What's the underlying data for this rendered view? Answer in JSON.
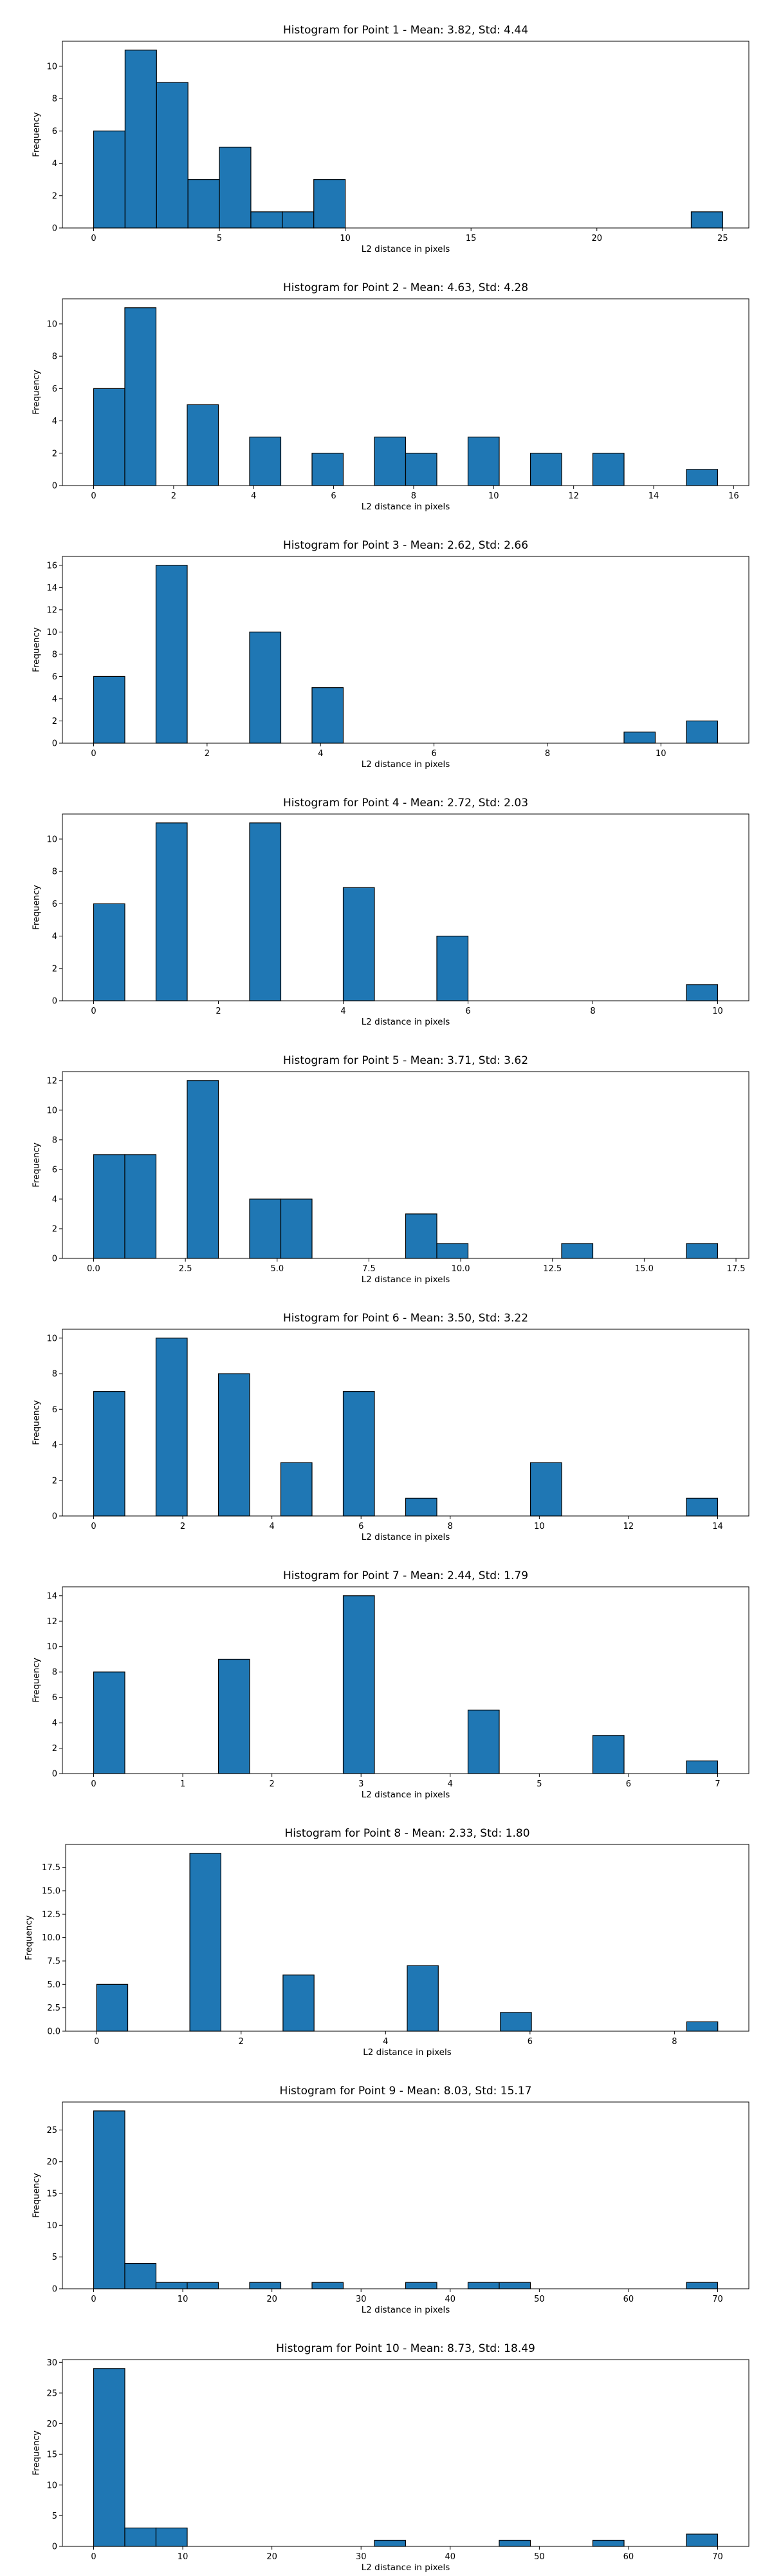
{
  "chart_data": [
    {
      "type": "bar",
      "title": "Histogram for Point 1 - Mean: 3.82, Std: 4.44",
      "xlabel": "L2 distance in pixels",
      "ylabel": "Frequency",
      "xlim": [
        -1.24,
        26.04
      ],
      "ylim": [
        0,
        11.55
      ],
      "xticks": [
        0,
        5,
        10,
        15,
        20,
        25
      ],
      "xtick_labels": [
        "0",
        "5",
        "10",
        "15",
        "20",
        "25"
      ],
      "yticks": [
        0,
        2,
        4,
        6,
        8,
        10
      ],
      "ytick_labels": [
        "0",
        "2",
        "4",
        "6",
        "8",
        "10"
      ],
      "grid": false,
      "color": "#1f77b4",
      "bins": [
        {
          "x0": 0.0,
          "x1": 1.25,
          "value": 6
        },
        {
          "x0": 1.25,
          "x1": 2.5,
          "value": 11
        },
        {
          "x0": 2.5,
          "x1": 3.75,
          "value": 9
        },
        {
          "x0": 3.75,
          "x1": 5.0,
          "value": 3
        },
        {
          "x0": 5.0,
          "x1": 6.25,
          "value": 5
        },
        {
          "x0": 6.25,
          "x1": 7.5,
          "value": 1
        },
        {
          "x0": 7.5,
          "x1": 8.75,
          "value": 1
        },
        {
          "x0": 8.75,
          "x1": 10.0,
          "value": 3
        },
        {
          "x0": 23.75,
          "x1": 25.0,
          "value": 1
        }
      ]
    },
    {
      "type": "bar",
      "title": "Histogram for Point 2 - Mean: 4.63, Std: 4.28",
      "xlabel": "L2 distance in pixels",
      "ylabel": "Frequency",
      "xlim": [
        -0.78,
        16.38
      ],
      "ylim": [
        0,
        11.55
      ],
      "xticks": [
        0,
        2,
        4,
        6,
        8,
        10,
        12,
        14,
        16
      ],
      "xtick_labels": [
        "0",
        "2",
        "4",
        "6",
        "8",
        "10",
        "12",
        "14",
        "16"
      ],
      "yticks": [
        0,
        2,
        4,
        6,
        8,
        10
      ],
      "ytick_labels": [
        "0",
        "2",
        "4",
        "6",
        "8",
        "10"
      ],
      "grid": false,
      "color": "#1f77b4",
      "bins": [
        {
          "x0": 0.0,
          "x1": 0.78,
          "value": 6
        },
        {
          "x0": 0.78,
          "x1": 1.56,
          "value": 11
        },
        {
          "x0": 2.34,
          "x1": 3.12,
          "value": 5
        },
        {
          "x0": 3.9,
          "x1": 4.68,
          "value": 3
        },
        {
          "x0": 5.46,
          "x1": 6.24,
          "value": 2
        },
        {
          "x0": 7.02,
          "x1": 7.8,
          "value": 3
        },
        {
          "x0": 7.8,
          "x1": 8.58,
          "value": 2
        },
        {
          "x0": 9.36,
          "x1": 10.14,
          "value": 3
        },
        {
          "x0": 10.92,
          "x1": 11.7,
          "value": 2
        },
        {
          "x0": 12.48,
          "x1": 13.26,
          "value": 2
        },
        {
          "x0": 14.82,
          "x1": 15.6,
          "value": 1
        }
      ]
    },
    {
      "type": "bar",
      "title": "Histogram for Point 3 - Mean: 2.62, Std: 2.66",
      "xlabel": "L2 distance in pixels",
      "ylabel": "Frequency",
      "xlim": [
        -0.55,
        11.55
      ],
      "ylim": [
        0,
        16.8
      ],
      "xticks": [
        0,
        2,
        4,
        6,
        8,
        10
      ],
      "xtick_labels": [
        "0",
        "2",
        "4",
        "6",
        "8",
        "10"
      ],
      "yticks": [
        0,
        2,
        4,
        6,
        8,
        10,
        12,
        14,
        16
      ],
      "ytick_labels": [
        "0",
        "2",
        "4",
        "6",
        "8",
        "10",
        "12",
        "14",
        "16"
      ],
      "grid": false,
      "color": "#1f77b4",
      "bins": [
        {
          "x0": 0.0,
          "x1": 0.55,
          "value": 6
        },
        {
          "x0": 1.1,
          "x1": 1.65,
          "value": 16
        },
        {
          "x0": 2.75,
          "x1": 3.3,
          "value": 10
        },
        {
          "x0": 3.85,
          "x1": 4.4,
          "value": 5
        },
        {
          "x0": 9.35,
          "x1": 9.9,
          "value": 1
        },
        {
          "x0": 10.45,
          "x1": 11.0,
          "value": 2
        }
      ]
    },
    {
      "type": "bar",
      "title": "Histogram for Point 4 - Mean: 2.72, Std: 2.03",
      "xlabel": "L2 distance in pixels",
      "ylabel": "Frequency",
      "xlim": [
        -0.5,
        10.5
      ],
      "ylim": [
        0,
        11.55
      ],
      "xticks": [
        0,
        2,
        4,
        6,
        8,
        10
      ],
      "xtick_labels": [
        "0",
        "2",
        "4",
        "6",
        "8",
        "10"
      ],
      "yticks": [
        0,
        2,
        4,
        6,
        8,
        10
      ],
      "ytick_labels": [
        "0",
        "2",
        "4",
        "6",
        "8",
        "10"
      ],
      "grid": false,
      "color": "#1f77b4",
      "bins": [
        {
          "x0": 0.0,
          "x1": 0.5,
          "value": 6
        },
        {
          "x0": 1.0,
          "x1": 1.5,
          "value": 11
        },
        {
          "x0": 2.5,
          "x1": 3.0,
          "value": 11
        },
        {
          "x0": 4.0,
          "x1": 4.5,
          "value": 7
        },
        {
          "x0": 5.5,
          "x1": 6.0,
          "value": 4
        },
        {
          "x0": 9.5,
          "x1": 10.0,
          "value": 1
        }
      ]
    },
    {
      "type": "bar",
      "title": "Histogram for Point 5 - Mean: 3.71, Std: 3.62",
      "xlabel": "L2 distance in pixels",
      "ylabel": "Frequency",
      "xlim": [
        -0.85,
        17.85
      ],
      "ylim": [
        0,
        12.6
      ],
      "xticks": [
        0.0,
        2.5,
        5.0,
        7.5,
        10.0,
        12.5,
        15.0,
        17.5
      ],
      "xtick_labels": [
        "0.0",
        "2.5",
        "5.0",
        "7.5",
        "10.0",
        "12.5",
        "15.0",
        "17.5"
      ],
      "yticks": [
        0,
        2,
        4,
        6,
        8,
        10,
        12
      ],
      "ytick_labels": [
        "0",
        "2",
        "4",
        "6",
        "8",
        "10",
        "12"
      ],
      "grid": false,
      "color": "#1f77b4",
      "bins": [
        {
          "x0": 0.0,
          "x1": 0.85,
          "value": 7
        },
        {
          "x0": 0.85,
          "x1": 1.7,
          "value": 7
        },
        {
          "x0": 2.55,
          "x1": 3.4,
          "value": 12
        },
        {
          "x0": 4.25,
          "x1": 5.1,
          "value": 4
        },
        {
          "x0": 5.1,
          "x1": 5.95,
          "value": 4
        },
        {
          "x0": 8.5,
          "x1": 9.35,
          "value": 3
        },
        {
          "x0": 9.35,
          "x1": 10.2,
          "value": 1
        },
        {
          "x0": 12.75,
          "x1": 13.6,
          "value": 1
        },
        {
          "x0": 16.15,
          "x1": 17.0,
          "value": 1
        }
      ]
    },
    {
      "type": "bar",
      "title": "Histogram for Point 6 - Mean: 3.50, Std: 3.22",
      "xlabel": "L2 distance in pixels",
      "ylabel": "Frequency",
      "xlim": [
        -0.7,
        14.7
      ],
      "ylim": [
        0,
        10.5
      ],
      "xticks": [
        0,
        2,
        4,
        6,
        8,
        10,
        12,
        14
      ],
      "xtick_labels": [
        "0",
        "2",
        "4",
        "6",
        "8",
        "10",
        "12",
        "14"
      ],
      "yticks": [
        0,
        2,
        4,
        6,
        8,
        10
      ],
      "ytick_labels": [
        "0",
        "2",
        "4",
        "6",
        "8",
        "10"
      ],
      "grid": false,
      "color": "#1f77b4",
      "bins": [
        {
          "x0": 0.0,
          "x1": 0.7,
          "value": 7
        },
        {
          "x0": 1.4,
          "x1": 2.1,
          "value": 10
        },
        {
          "x0": 2.8,
          "x1": 3.5,
          "value": 8
        },
        {
          "x0": 4.2,
          "x1": 4.9,
          "value": 3
        },
        {
          "x0": 5.6,
          "x1": 6.3,
          "value": 7
        },
        {
          "x0": 7.0,
          "x1": 7.7,
          "value": 1
        },
        {
          "x0": 9.8,
          "x1": 10.5,
          "value": 3
        },
        {
          "x0": 13.3,
          "x1": 14.0,
          "value": 1
        }
      ]
    },
    {
      "type": "bar",
      "title": "Histogram for Point 7 - Mean: 2.44, Std: 1.79",
      "xlabel": "L2 distance in pixels",
      "ylabel": "Frequency",
      "xlim": [
        -0.35,
        7.35
      ],
      "ylim": [
        0,
        14.7
      ],
      "xticks": [
        0,
        1,
        2,
        3,
        4,
        5,
        6,
        7
      ],
      "xtick_labels": [
        "0",
        "1",
        "2",
        "3",
        "4",
        "5",
        "6",
        "7"
      ],
      "yticks": [
        0,
        2,
        4,
        6,
        8,
        10,
        12,
        14
      ],
      "ytick_labels": [
        "0",
        "2",
        "4",
        "6",
        "8",
        "10",
        "12",
        "14"
      ],
      "grid": false,
      "color": "#1f77b4",
      "bins": [
        {
          "x0": 0.0,
          "x1": 0.35,
          "value": 8
        },
        {
          "x0": 1.4,
          "x1": 1.75,
          "value": 9
        },
        {
          "x0": 2.8,
          "x1": 3.15,
          "value": 14
        },
        {
          "x0": 4.2,
          "x1": 4.55,
          "value": 5
        },
        {
          "x0": 5.6,
          "x1": 5.95,
          "value": 3
        },
        {
          "x0": 6.65,
          "x1": 7.0,
          "value": 1
        }
      ]
    },
    {
      "type": "bar",
      "title": "Histogram for Point 8 - Mean: 2.33, Std: 1.80",
      "xlabel": "L2 distance in pixels",
      "ylabel": "Frequency",
      "xlim": [
        -0.43,
        9.03
      ],
      "ylim": [
        0,
        19.95
      ],
      "xticks": [
        0,
        2,
        4,
        6,
        8
      ],
      "xtick_labels": [
        "0",
        "2",
        "4",
        "6",
        "8"
      ],
      "yticks": [
        0.0,
        2.5,
        5.0,
        7.5,
        10.0,
        12.5,
        15.0,
        17.5
      ],
      "ytick_labels": [
        "0.0",
        "2.5",
        "5.0",
        "7.5",
        "10.0",
        "12.5",
        "15.0",
        "17.5"
      ],
      "grid": false,
      "color": "#1f77b4",
      "bins": [
        {
          "x0": 0.0,
          "x1": 0.43,
          "value": 5
        },
        {
          "x0": 1.29,
          "x1": 1.72,
          "value": 19
        },
        {
          "x0": 2.58,
          "x1": 3.01,
          "value": 6
        },
        {
          "x0": 4.3,
          "x1": 4.73,
          "value": 7
        },
        {
          "x0": 5.59,
          "x1": 6.02,
          "value": 2
        },
        {
          "x0": 8.17,
          "x1": 8.6,
          "value": 1
        }
      ]
    },
    {
      "type": "bar",
      "title": "Histogram for Point 9 - Mean: 8.03, Std: 15.17",
      "xlabel": "L2 distance in pixels",
      "ylabel": "Frequency",
      "xlim": [
        -3.5,
        73.5
      ],
      "ylim": [
        0,
        29.4
      ],
      "xticks": [
        0,
        10,
        20,
        30,
        40,
        50,
        60,
        70
      ],
      "xtick_labels": [
        "0",
        "10",
        "20",
        "30",
        "40",
        "50",
        "60",
        "70"
      ],
      "yticks": [
        0,
        5,
        10,
        15,
        20,
        25
      ],
      "ytick_labels": [
        "0",
        "5",
        "10",
        "15",
        "20",
        "25"
      ],
      "grid": false,
      "color": "#1f77b4",
      "bins": [
        {
          "x0": 0.0,
          "x1": 3.5,
          "value": 28
        },
        {
          "x0": 3.5,
          "x1": 7.0,
          "value": 4
        },
        {
          "x0": 7.0,
          "x1": 10.5,
          "value": 1
        },
        {
          "x0": 10.5,
          "x1": 14.0,
          "value": 1
        },
        {
          "x0": 17.5,
          "x1": 21.0,
          "value": 1
        },
        {
          "x0": 24.5,
          "x1": 28.0,
          "value": 1
        },
        {
          "x0": 35.0,
          "x1": 38.5,
          "value": 1
        },
        {
          "x0": 42.0,
          "x1": 45.5,
          "value": 1
        },
        {
          "x0": 45.5,
          "x1": 49.0,
          "value": 1
        },
        {
          "x0": 66.5,
          "x1": 70.0,
          "value": 1
        }
      ]
    },
    {
      "type": "bar",
      "title": "Histogram for Point 10 - Mean: 8.73, Std: 18.49",
      "xlabel": "L2 distance in pixels",
      "ylabel": "Frequency",
      "xlim": [
        -3.5,
        73.5
      ],
      "ylim": [
        0,
        30.45
      ],
      "xticks": [
        0,
        10,
        20,
        30,
        40,
        50,
        60,
        70
      ],
      "xtick_labels": [
        "0",
        "10",
        "20",
        "30",
        "40",
        "50",
        "60",
        "70"
      ],
      "yticks": [
        0,
        5,
        10,
        15,
        20,
        25,
        30
      ],
      "ytick_labels": [
        "0",
        "5",
        "10",
        "15",
        "20",
        "25",
        "30"
      ],
      "grid": false,
      "color": "#1f77b4",
      "bins": [
        {
          "x0": 0.0,
          "x1": 3.5,
          "value": 29
        },
        {
          "x0": 3.5,
          "x1": 7.0,
          "value": 3
        },
        {
          "x0": 7.0,
          "x1": 10.5,
          "value": 3
        },
        {
          "x0": 31.5,
          "x1": 35.0,
          "value": 1
        },
        {
          "x0": 45.5,
          "x1": 49.0,
          "value": 1
        },
        {
          "x0": 56.0,
          "x1": 59.5,
          "value": 1
        },
        {
          "x0": 66.5,
          "x1": 70.0,
          "value": 2
        }
      ]
    }
  ]
}
